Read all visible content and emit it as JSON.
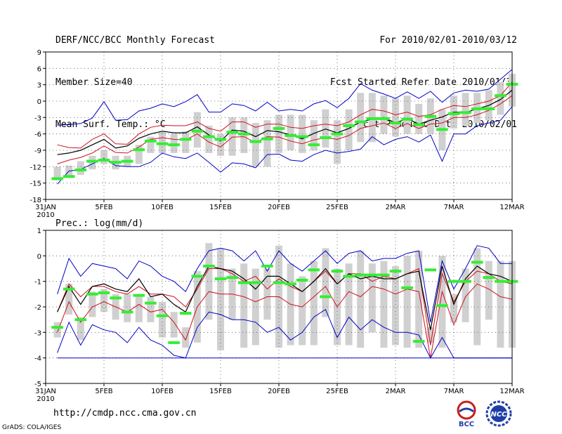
{
  "header": {
    "left": [
      "DERF/NCC/BCC Monthly Forecast",
      "Member Size=40",
      "Mean Surf. Temp.: °C"
    ],
    "right": [
      "For 2010/02/01-2010/03/12",
      "Fcst Started Refer Date 2010/01/31",
      "Fcst Produced Date 2010/02/01"
    ]
  },
  "footer": {
    "url": "http://cmdp.ncc.cma.gov.cn",
    "credit": "GrADS: COLA/IGES",
    "logo_bcc": "BCC",
    "logo_ncc": "NCC"
  },
  "colors": {
    "mean": "#000000",
    "inner_band": "#d01020",
    "outer_band": "#0000c8",
    "box": "#d0d0d0",
    "observation": "#33ee33",
    "grid": "#555555"
  },
  "chart_data": [
    {
      "type": "line",
      "title": "Mean Surf. Temp.: °C",
      "x_tick_labels": [
        "31JAN",
        "5FEB",
        "10FEB",
        "15FEB",
        "20FEB",
        "25FEB",
        "2MAR",
        "7MAR",
        "12MAR"
      ],
      "x_tick_days": [
        0,
        5,
        10,
        15,
        20,
        25,
        30,
        35,
        40
      ],
      "x_year_label": "2010",
      "days": [
        1,
        2,
        3,
        4,
        5,
        6,
        7,
        8,
        9,
        10,
        11,
        12,
        13,
        14,
        15,
        16,
        17,
        18,
        19,
        20,
        21,
        22,
        23,
        24,
        25,
        26,
        27,
        28,
        29,
        30,
        31,
        32,
        33,
        34,
        35,
        36,
        37,
        38,
        39,
        40
      ],
      "ylim": [
        -18,
        9
      ],
      "y_ticks": [
        -18,
        -15,
        -12,
        -9,
        -6,
        -3,
        0,
        3,
        6,
        9
      ],
      "series": [
        {
          "name": "max",
          "values": [
            -4.4,
            -4.3,
            -4.1,
            -3.1,
            -0.1,
            -3.5,
            -3.4,
            -1.8,
            -1.3,
            -0.5,
            -1.0,
            -0.1,
            1.2,
            -2.0,
            -2.0,
            -0.5,
            -0.8,
            -1.8,
            -0.2,
            -1.8,
            -1.5,
            -1.8,
            -0.5,
            0.1,
            -1.2,
            0.5,
            3.2,
            2.0,
            1.3,
            0.5,
            1.7,
            0.5,
            1.8,
            -0.2,
            1.5,
            2.0,
            1.8,
            2.2,
            4.0,
            5.8
          ]
        },
        {
          "name": "upper",
          "values": [
            -8.0,
            -8.5,
            -8.6,
            -7.0,
            -6.0,
            -7.8,
            -7.9,
            -6.0,
            -4.8,
            -4.4,
            -4.5,
            -4.5,
            -3.8,
            -5.0,
            -5.5,
            -3.8,
            -3.8,
            -4.8,
            -4.2,
            -4.2,
            -4.8,
            -5.0,
            -4.5,
            -4.2,
            -4.5,
            -3.8,
            -2.5,
            -1.5,
            -1.8,
            -2.5,
            -2.0,
            -2.8,
            -2.5,
            -1.5,
            -0.8,
            -1.0,
            -0.5,
            0.0,
            1.0,
            3.5
          ]
        },
        {
          "name": "mean",
          "values": [
            -9.8,
            -9.5,
            -9.0,
            -8.0,
            -7.0,
            -8.6,
            -8.2,
            -6.8,
            -6.0,
            -5.5,
            -5.8,
            -5.8,
            -4.7,
            -6.2,
            -7.3,
            -5.3,
            -5.5,
            -6.5,
            -5.4,
            -5.6,
            -6.2,
            -6.9,
            -5.9,
            -5.1,
            -5.8,
            -5.0,
            -3.8,
            -3.3,
            -3.0,
            -4.0,
            -3.2,
            -4.2,
            -3.5,
            -2.9,
            -2.0,
            -2.1,
            -1.4,
            -0.8,
            0.3,
            2.0
          ]
        },
        {
          "name": "lower",
          "values": [
            -11.5,
            -10.8,
            -10.3,
            -9.5,
            -8.2,
            -9.4,
            -9.5,
            -8.4,
            -7.0,
            -6.7,
            -7.0,
            -7.1,
            -6.0,
            -7.5,
            -8.4,
            -6.6,
            -6.5,
            -7.6,
            -6.5,
            -6.6,
            -7.3,
            -7.8,
            -7.1,
            -6.7,
            -7.0,
            -6.3,
            -5.0,
            -4.5,
            -4.0,
            -5.0,
            -4.1,
            -5.0,
            -4.2,
            -4.0,
            -3.0,
            -3.0,
            -2.5,
            -1.7,
            -0.5,
            1.0
          ]
        },
        {
          "name": "min",
          "values": [
            -15.2,
            -12.8,
            -12.5,
            -11.5,
            -10.5,
            -11.8,
            -12.0,
            -12.0,
            -11.2,
            -9.5,
            -10.2,
            -10.5,
            -9.5,
            -11.2,
            -13.0,
            -11.3,
            -11.5,
            -12.2,
            -9.8,
            -9.7,
            -10.8,
            -11.0,
            -9.8,
            -9.0,
            -9.5,
            -9.2,
            -8.8,
            -6.5,
            -8.0,
            -7.0,
            -6.5,
            -7.5,
            -6.2,
            -11.0,
            -6.0,
            -6.0,
            -4.5,
            -4.0,
            -3.5,
            -1.0
          ]
        }
      ],
      "boxes": [
        {
          "low": -14.5,
          "high": -12.0
        },
        {
          "low": -14.0,
          "high": -11.8
        },
        {
          "low": -13.5,
          "high": -11.0
        },
        {
          "low": -12.5,
          "high": -10.0
        },
        {
          "low": -11.5,
          "high": -9.0
        },
        {
          "low": -12.5,
          "high": -10.0
        },
        {
          "low": -12.0,
          "high": -10.0
        },
        {
          "low": -11.5,
          "high": -8.0
        },
        {
          "low": -9.5,
          "high": -6.5
        },
        {
          "low": -9.5,
          "high": -5.5
        },
        {
          "low": -9.5,
          "high": -6.0
        },
        {
          "low": -9.5,
          "high": -5.5
        },
        {
          "low": -8.5,
          "high": -2.0
        },
        {
          "low": -9.5,
          "high": -4.5
        },
        {
          "low": -10.0,
          "high": -6.0
        },
        {
          "low": -10.0,
          "high": -3.0
        },
        {
          "low": -9.5,
          "high": -3.0
        },
        {
          "low": -12.0,
          "high": -4.0
        },
        {
          "low": -12.0,
          "high": -3.5
        },
        {
          "low": -9.5,
          "high": -2.5
        },
        {
          "low": -9.0,
          "high": -2.5
        },
        {
          "low": -9.5,
          "high": -2.5
        },
        {
          "low": -9.0,
          "high": -3.5
        },
        {
          "low": -8.5,
          "high": -1.5
        },
        {
          "low": -11.5,
          "high": -3.5
        },
        {
          "low": -9.0,
          "high": -1.5
        },
        {
          "low": -7.5,
          "high": 1.5
        },
        {
          "low": -7.5,
          "high": 1.5
        },
        {
          "low": -6.0,
          "high": 1.0
        },
        {
          "low": -6.5,
          "high": 0.5
        },
        {
          "low": -6.0,
          "high": 1.0
        },
        {
          "low": -6.0,
          "high": -0.5
        },
        {
          "low": -6.0,
          "high": 0.5
        },
        {
          "low": -9.0,
          "high": -1.5
        },
        {
          "low": -5.0,
          "high": 1.0
        },
        {
          "low": -4.5,
          "high": 1.5
        },
        {
          "low": -4.0,
          "high": 1.5
        },
        {
          "low": -3.5,
          "high": 2.0
        },
        {
          "low": -2.5,
          "high": 3.5
        },
        {
          "low": -1.0,
          "high": 5.0
        }
      ],
      "observations": [
        -14.2,
        -13.8,
        -12.6,
        -11.0,
        -10.8,
        -11.2,
        -11.0,
        -8.9,
        -7.3,
        -7.8,
        -8.0,
        -7.0,
        -5.5,
        -6.5,
        -7.0,
        -5.7,
        -6.0,
        -7.4,
        -6.9,
        -5.0,
        -6.3,
        -6.5,
        -8.0,
        -6.7,
        -6.0,
        -4.5,
        -3.8,
        -3.2,
        -3.2,
        -4.0,
        -3.3,
        -4.3,
        -2.8,
        -5.2,
        -2.3,
        -2.1,
        -1.4,
        -1.4,
        1.0,
        3.1
      ]
    },
    {
      "type": "line",
      "title": "Prec.: log(mm/d)",
      "x_tick_labels": [
        "31JAN",
        "5FEB",
        "10FEB",
        "15FEB",
        "20FEB",
        "25FEB",
        "2MAR",
        "7MAR",
        "12MAR"
      ],
      "x_tick_days": [
        0,
        5,
        10,
        15,
        20,
        25,
        30,
        35,
        40
      ],
      "x_year_label": "2010",
      "days": [
        1,
        2,
        3,
        4,
        5,
        6,
        7,
        8,
        9,
        10,
        11,
        12,
        13,
        14,
        15,
        16,
        17,
        18,
        19,
        20,
        21,
        22,
        23,
        24,
        25,
        26,
        27,
        28,
        29,
        30,
        31,
        32,
        33,
        34,
        35,
        36,
        37,
        38,
        39,
        40
      ],
      "ylim": [
        -5,
        1
      ],
      "y_ticks": [
        -5,
        -4,
        -3,
        -2,
        -1,
        0,
        1
      ],
      "series": [
        {
          "name": "max",
          "values": [
            -1.5,
            -0.1,
            -0.8,
            -0.3,
            -0.4,
            -0.5,
            -0.9,
            -0.2,
            -0.4,
            -0.8,
            -1.0,
            -1.4,
            -0.5,
            0.2,
            0.3,
            0.2,
            -0.2,
            0.2,
            -0.6,
            0.2,
            -0.3,
            -0.6,
            -0.2,
            0.2,
            -0.3,
            0.1,
            0.2,
            -0.2,
            -0.1,
            -0.1,
            0.1,
            0.2,
            -2.6,
            -0.2,
            -1.3,
            -0.5,
            0.4,
            0.3,
            -0.3,
            -0.3
          ]
        },
        {
          "name": "upper",
          "values": [
            -2.2,
            -1.1,
            -1.6,
            -1.2,
            -1.2,
            -1.4,
            -1.5,
            -1.2,
            -1.5,
            -1.5,
            -1.6,
            -2.0,
            -1.3,
            -0.5,
            -0.5,
            -0.7,
            -1.0,
            -0.8,
            -1.3,
            -0.9,
            -1.2,
            -1.4,
            -1.0,
            -0.6,
            -1.1,
            -0.7,
            -0.7,
            -1.0,
            -0.8,
            -0.9,
            -0.7,
            -0.5,
            -3.5,
            -0.7,
            -1.8,
            -1.0,
            -0.6,
            -0.7,
            -1.0,
            -1.1
          ]
        },
        {
          "name": "mean",
          "values": [
            -2.2,
            -1.2,
            -1.9,
            -1.2,
            -1.1,
            -1.3,
            -1.4,
            -0.9,
            -1.6,
            -1.5,
            -1.9,
            -2.2,
            -1.2,
            -0.4,
            -0.5,
            -0.6,
            -0.9,
            -1.3,
            -0.8,
            -0.8,
            -1.1,
            -1.4,
            -1.0,
            -0.5,
            -1.1,
            -0.7,
            -0.9,
            -0.8,
            -0.9,
            -0.9,
            -0.7,
            -0.6,
            -2.9,
            -0.4,
            -1.9,
            -0.9,
            -0.4,
            -0.7,
            -0.8,
            -1.0
          ]
        },
        {
          "name": "lower",
          "values": [
            -3.0,
            -1.8,
            -2.6,
            -2.0,
            -1.8,
            -2.0,
            -2.2,
            -1.9,
            -2.2,
            -2.1,
            -2.6,
            -3.3,
            -2.0,
            -1.4,
            -1.5,
            -1.5,
            -1.6,
            -1.8,
            -1.6,
            -1.6,
            -1.9,
            -2.0,
            -1.6,
            -1.2,
            -2.0,
            -1.4,
            -1.6,
            -1.2,
            -1.3,
            -1.5,
            -1.3,
            -1.4,
            -4.0,
            -1.4,
            -2.7,
            -1.6,
            -1.1,
            -1.3,
            -1.6,
            -1.7
          ]
        },
        {
          "name": "min",
          "values": [
            -3.8,
            -2.6,
            -3.5,
            -2.7,
            -2.9,
            -3.0,
            -3.4,
            -2.8,
            -3.3,
            -3.5,
            -3.9,
            -4.0,
            -2.8,
            -2.2,
            -2.3,
            -2.5,
            -2.5,
            -2.6,
            -3.0,
            -2.8,
            -3.3,
            -3.0,
            -2.4,
            -2.1,
            -3.2,
            -2.4,
            -2.9,
            -2.5,
            -2.8,
            -3.0,
            -3.0,
            -3.1,
            -4.0,
            -3.2,
            -4.0,
            -4.0,
            -4.0,
            -4.0,
            -4.0,
            -4.0
          ]
        },
        {
          "name": "floor",
          "values": [
            -4,
            -4,
            -4,
            -4,
            -4,
            -4,
            -4,
            -4,
            -4,
            -4,
            -4,
            -4,
            -4,
            -4,
            -4,
            -4,
            -4,
            -4,
            -4,
            -4,
            -4,
            -4,
            -4,
            -4,
            -4,
            -4,
            -4,
            -4,
            -4,
            -4,
            -4,
            -4,
            -4,
            -4,
            -4,
            -4,
            -4,
            -4,
            -4,
            -4
          ]
        }
      ],
      "boxes": [
        {
          "low": -3.2,
          "high": -2.6
        },
        {
          "low": -2.3,
          "high": -1.1
        },
        {
          "low": -3.3,
          "high": -2.4
        },
        {
          "low": -2.4,
          "high": -1.4
        },
        {
          "low": -2.2,
          "high": -1.3
        },
        {
          "low": -2.5,
          "high": -1.5
        },
        {
          "low": -2.6,
          "high": -1.5
        },
        {
          "low": -2.6,
          "high": -1.5
        },
        {
          "low": -2.6,
          "high": -1.6
        },
        {
          "low": -3.2,
          "high": -1.8
        },
        {
          "low": -3.2,
          "high": -2.2
        },
        {
          "low": -3.6,
          "high": -2.8
        },
        {
          "low": -3.4,
          "high": -0.6
        },
        {
          "low": -2.5,
          "high": 0.5
        },
        {
          "low": -3.7,
          "high": 0.3
        },
        {
          "low": -2.5,
          "high": -0.5
        },
        {
          "low": -3.6,
          "high": -0.3
        },
        {
          "low": -3.5,
          "high": -0.5
        },
        {
          "low": -2.5,
          "high": -0.5
        },
        {
          "low": -3.6,
          "high": 0.4
        },
        {
          "low": -3.5,
          "high": -0.3
        },
        {
          "low": -3.5,
          "high": -0.8
        },
        {
          "low": -3.5,
          "high": -0.2
        },
        {
          "low": -2.4,
          "high": 0.3
        },
        {
          "low": -3.5,
          "high": -0.5
        },
        {
          "low": -3.5,
          "high": -0.3
        },
        {
          "low": -3.6,
          "high": 0.2
        },
        {
          "low": -3.0,
          "high": -0.3
        },
        {
          "low": -3.6,
          "high": -0.2
        },
        {
          "low": -3.5,
          "high": -0.4
        },
        {
          "low": -3.6,
          "high": 0.0
        },
        {
          "low": -3.6,
          "high": 0.2
        },
        {
          "low": -3.4,
          "high": -2.8
        },
        {
          "low": -3.6,
          "high": 0.0
        },
        {
          "low": -2.6,
          "high": -1.5
        },
        {
          "low": -2.6,
          "high": -0.5
        },
        {
          "low": -3.5,
          "high": 0.3
        },
        {
          "low": -2.5,
          "high": -0.2
        },
        {
          "low": -3.6,
          "high": -0.2
        },
        {
          "low": -3.6,
          "high": -0.2
        }
      ],
      "observations": [
        -2.8,
        -1.3,
        -2.5,
        -1.5,
        -1.45,
        -1.65,
        -2.2,
        -1.55,
        -1.85,
        -2.35,
        -3.4,
        -2.25,
        -0.8,
        -0.4,
        -0.9,
        -0.85,
        -1.05,
        -1.05,
        -0.4,
        -1.05,
        -1.1,
        -0.95,
        -0.55,
        -1.6,
        -0.6,
        -0.8,
        -0.75,
        -0.75,
        -0.75,
        -0.6,
        -1.25,
        -3.35,
        -0.55,
        -1.95,
        -1.0,
        -1.0,
        -0.25,
        -0.85,
        -1.0,
        -1.0
      ]
    }
  ]
}
